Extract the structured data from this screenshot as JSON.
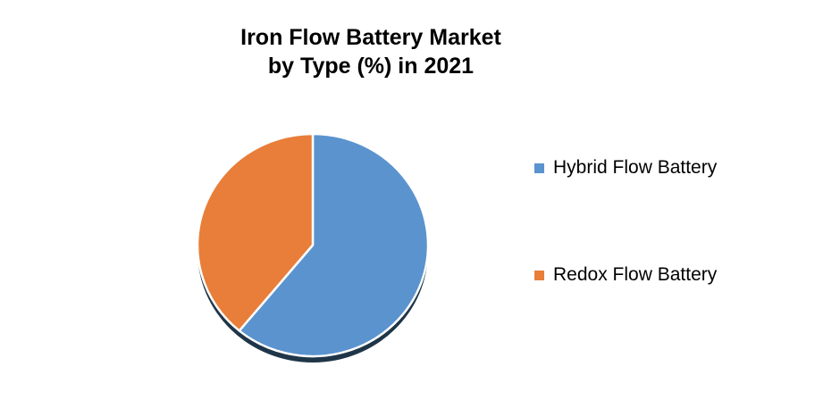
{
  "header": {
    "title_line1": "Iron Flow Battery Market",
    "title_line2": "by Type (%) in 2021"
  },
  "chart_data": {
    "type": "pie",
    "title": "Iron Flow Battery Market by Type (%) in 2021",
    "start_angle_deg": 0,
    "direction": "clockwise",
    "legend_position": "right",
    "background_color": "#FFFFFF",
    "slice_border_color": "#FFFFFF",
    "shadow_color": "#1F3648",
    "segments": [
      {
        "label": "Hybrid Flow Battery",
        "value": 61,
        "color": "#5B93CE"
      },
      {
        "label": "Redox Flow Battery",
        "value": 39,
        "color": "#E87E39"
      }
    ]
  }
}
